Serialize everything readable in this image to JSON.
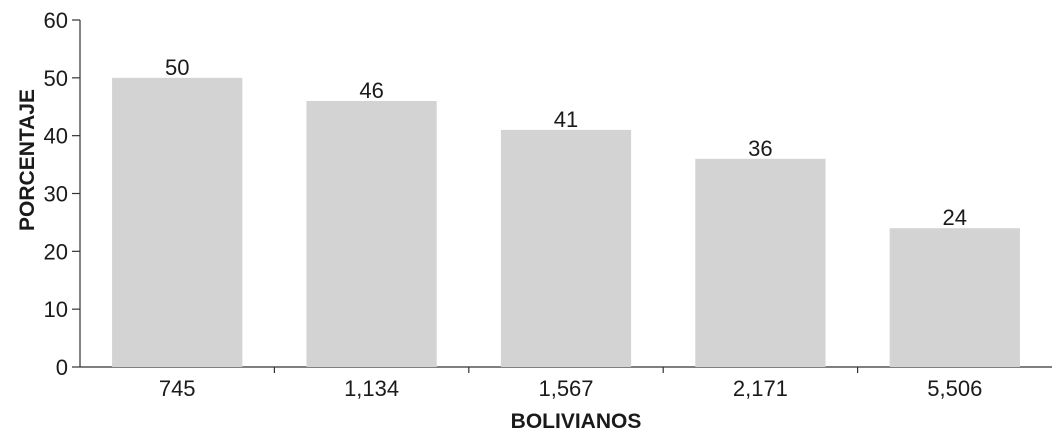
{
  "chart_data": {
    "type": "bar",
    "categories": [
      "745",
      "1,134",
      "1,567",
      "2,171",
      "5,506"
    ],
    "values": [
      50,
      46,
      41,
      36,
      24
    ],
    "data_labels": [
      "50",
      "46",
      "41",
      "36",
      "24"
    ],
    "xlabel": "BOLIVIANOS",
    "ylabel": "PORCENTAJE",
    "ylim": [
      0,
      60
    ],
    "yticks": [
      "0",
      "10",
      "20",
      "30",
      "40",
      "50",
      "60"
    ],
    "grid": false,
    "bar_color": "#d3d3d3"
  }
}
